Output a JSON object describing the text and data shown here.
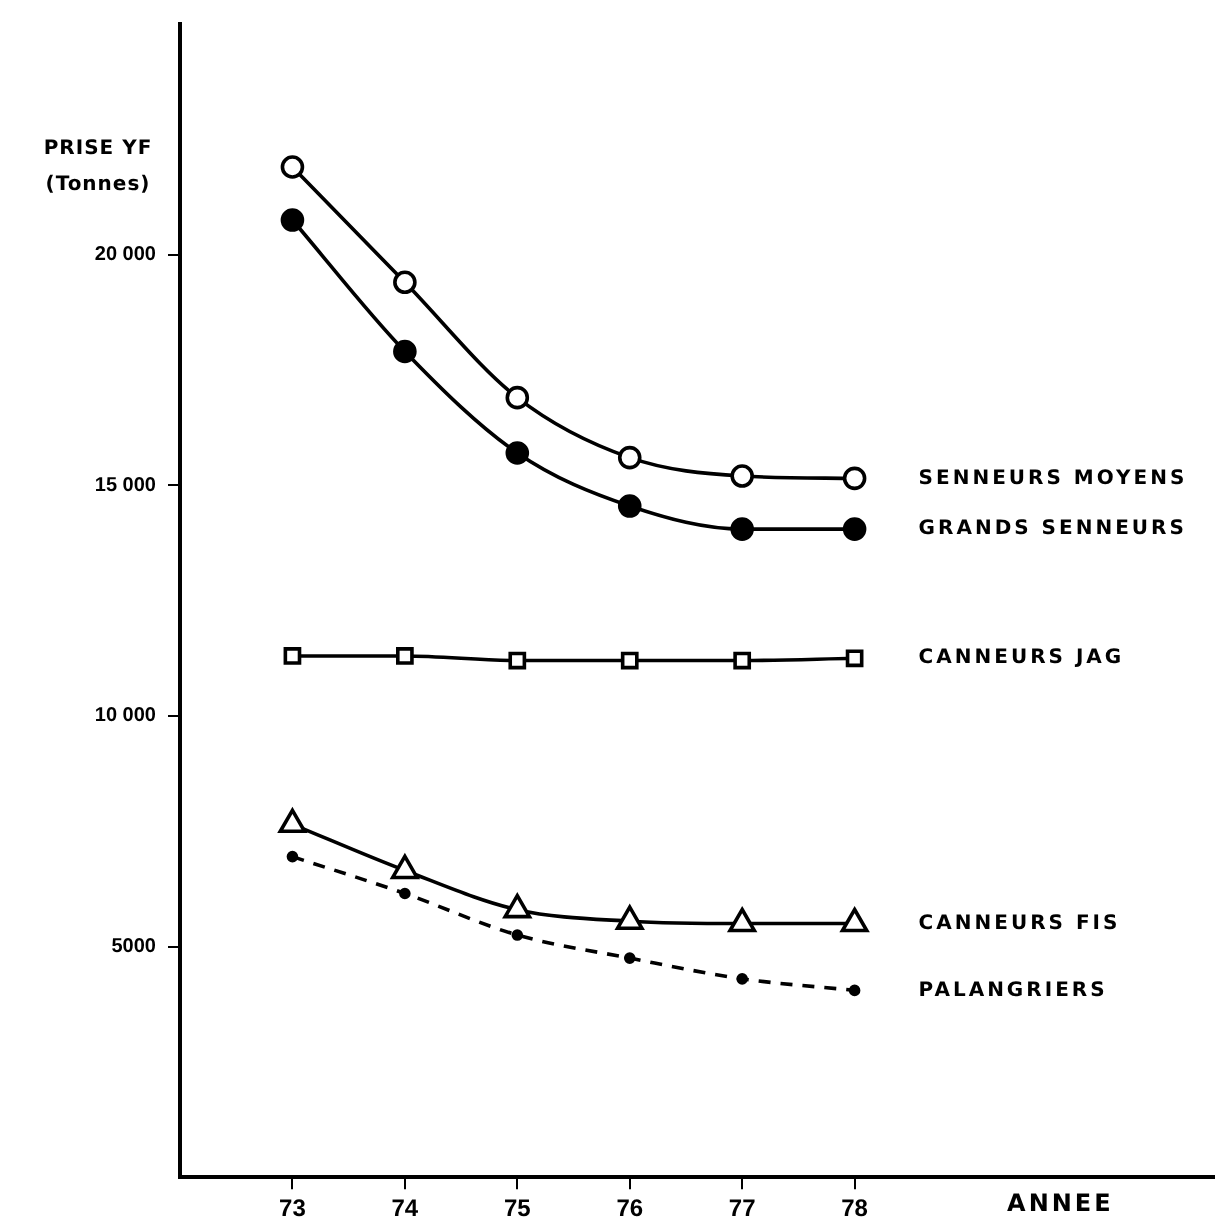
{
  "chart_data": {
    "type": "line",
    "ylabel": "PRISE YF (Tonnes)",
    "xlabel": "ANNEE",
    "x": [
      73,
      74,
      75,
      76,
      77,
      78
    ],
    "xlim": [
      72,
      81.2
    ],
    "xticks": [
      73,
      74,
      75,
      76,
      77,
      78
    ],
    "ylim": [
      0,
      25000
    ],
    "yticks": [
      {
        "value": 5000,
        "label": "5000"
      },
      {
        "value": 10000,
        "label": "10 000"
      },
      {
        "value": 15000,
        "label": "15 000"
      },
      {
        "value": 20000,
        "label": "20 000"
      }
    ],
    "grid": false,
    "legend": false,
    "series": [
      {
        "name": "SENNEURS MOYENS",
        "color": "#000000",
        "colors": [
          "#ffffff",
          "#ffffff",
          "#ffffff",
          "#ffffff",
          "#ffffff",
          "#ffffff"
        ],
        "marker": "circle",
        "line_style": "solid",
        "values": [
          21900,
          19400,
          16900,
          15600,
          15200,
          15150
        ]
      },
      {
        "name": "GRANDS SENNEURS",
        "color": "#000000",
        "colors": [
          "#000000",
          "#000000",
          "#000000",
          "#000000",
          "#000000",
          "#000000"
        ],
        "marker": "circle",
        "line_style": "solid",
        "values": [
          20750,
          17900,
          15700,
          14550,
          14050,
          14050
        ]
      },
      {
        "name": "CANNEURS JAG",
        "color": "#000000",
        "colors": [
          "#ffffff",
          "#ffffff",
          "#ffffff",
          "#ffffff",
          "#ffffff",
          "#ffffff"
        ],
        "marker": "square",
        "line_style": "solid",
        "values": [
          11300,
          11300,
          11200,
          11200,
          11200,
          11250
        ]
      },
      {
        "name": "CANNEURS FIS",
        "color": "#000000",
        "colors": [
          "#ffffff",
          "#ffffff",
          "#ffffff",
          "#ffffff",
          "#ffffff",
          "#ffffff"
        ],
        "marker": "triangle",
        "line_style": "solid",
        "values": [
          7650,
          6650,
          5800,
          5550,
          5500,
          5500
        ]
      },
      {
        "name": "PALANGRIERS",
        "color": "#000000",
        "colors": [
          "#000000",
          "#000000",
          "#000000",
          "#000000",
          "#000000",
          "#000000"
        ],
        "marker": "circle",
        "line_style": "dashed",
        "values": [
          6950,
          6150,
          5250,
          4750,
          4300,
          4050
        ]
      }
    ]
  }
}
